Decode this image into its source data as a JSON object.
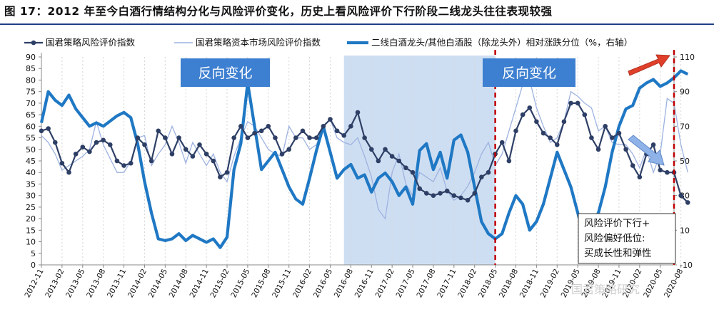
{
  "title": "图 17：2012 年至今白酒行情结构分化与风险评价变化，历史上看风险评价下行阶段二线龙头往往表现较强",
  "annotations": {
    "box1": "反向变化",
    "box2": "反向变化",
    "note": [
      "风险评价下行+",
      "风险偏好低位:",
      "买成长性和弹性"
    ],
    "watermark": "国君策略研究"
  },
  "colors": {
    "series_risk": "#2e3f66",
    "series_market": "#9db2e0",
    "series_relative": "#1f78c4",
    "shade": "#c5d8f0",
    "box": "#3d7fd0",
    "dash": "#c00000"
  },
  "chart_data": {
    "type": "line",
    "y_left": {
      "min": 0,
      "max": 90,
      "ticks": [
        0,
        5,
        10,
        15,
        20,
        25,
        30,
        35,
        40,
        45,
        50,
        55,
        60,
        65,
        70,
        75,
        80,
        85,
        90
      ]
    },
    "y_right": {
      "min": -10,
      "max": 110,
      "ticks": [
        -10,
        10,
        30,
        50,
        70,
        90,
        110
      ],
      "label": "右轴"
    },
    "x_ticks": [
      "2012-11",
      "2013-02",
      "2013-05",
      "2013-08",
      "2013-11",
      "2014-02",
      "2014-05",
      "2014-08",
      "2014-11",
      "2015-02",
      "2015-05",
      "2015-08",
      "2015-11",
      "2016-02",
      "2016-05",
      "2016-08",
      "2016-11",
      "2017-02",
      "2017-05",
      "2017-08",
      "2017-11",
      "2018-02",
      "2018-05",
      "2018-08",
      "2018-11",
      "2019-02",
      "2019-05",
      "2019-08",
      "2019-11",
      "2020-02",
      "2020-05",
      "2020-08"
    ],
    "shaded_range": [
      "2016-07",
      "2018-05"
    ],
    "vlines": [
      "2018-05",
      "2020-07"
    ],
    "series": [
      {
        "name": "国君策略风险评价指数",
        "axis": "left",
        "values": [
          58,
          59,
          53,
          44,
          40,
          48,
          51,
          49,
          53,
          54,
          52,
          45,
          43,
          44,
          55,
          52,
          45,
          58,
          55,
          48,
          55,
          50,
          47,
          52,
          48,
          45,
          38,
          40,
          55,
          60,
          55,
          57,
          58,
          60,
          55,
          48,
          50,
          55,
          58,
          55,
          55,
          60,
          63,
          58,
          56,
          60,
          66,
          55,
          50,
          45,
          50,
          47,
          45,
          42,
          40,
          33,
          31,
          30,
          31,
          32,
          30,
          29,
          28,
          31,
          38,
          40,
          48,
          53,
          45,
          58,
          65,
          68,
          62,
          57,
          55,
          52,
          62,
          70,
          70,
          65,
          55,
          50,
          60,
          55,
          57,
          50,
          43,
          38,
          48,
          52,
          41,
          40,
          40,
          30,
          27
        ]
      },
      {
        "name": "国君策略资本市场风险评价指数",
        "axis": "left",
        "values": [
          56,
          53,
          48,
          41,
          43,
          45,
          47,
          50,
          62,
          52,
          46,
          40,
          40,
          45,
          55,
          56,
          43,
          48,
          52,
          60,
          53,
          44,
          53,
          48,
          43,
          48,
          40,
          36,
          47,
          55,
          62,
          60,
          55,
          50,
          48,
          47,
          60,
          55,
          55,
          50,
          52,
          60,
          63,
          55,
          53,
          52,
          55,
          47,
          38,
          24,
          20,
          40,
          48,
          35,
          30,
          40,
          38,
          36,
          42,
          32,
          28,
          30,
          34,
          40,
          48,
          53,
          43,
          48,
          58,
          68,
          78,
          80,
          68,
          60,
          53,
          55,
          62,
          75,
          73,
          70,
          68,
          58,
          60,
          53,
          52,
          52,
          48,
          42,
          50,
          40,
          48,
          72,
          70,
          52,
          40
        ]
      },
      {
        "name": "二线白酒龙头/其他白酒股（除龙头外）相对涨跌分位（%，右轴）",
        "axis": "right",
        "values": [
          72,
          90,
          85,
          82,
          88,
          80,
          75,
          70,
          72,
          70,
          73,
          76,
          78,
          75,
          60,
          38,
          20,
          5,
          4,
          5,
          8,
          4,
          7,
          5,
          3,
          5,
          0,
          6,
          45,
          60,
          95,
          70,
          45,
          50,
          55,
          45,
          35,
          28,
          25,
          40,
          56,
          70,
          55,
          40,
          45,
          48,
          40,
          42,
          32,
          40,
          43,
          38,
          30,
          35,
          25,
          56,
          60,
          45,
          55,
          40,
          62,
          65,
          55,
          35,
          15,
          8,
          5,
          8,
          20,
          30,
          25,
          10,
          15,
          25,
          40,
          55,
          45,
          35,
          20,
          5,
          15,
          20,
          35,
          55,
          70,
          80,
          82,
          92,
          95,
          97,
          93,
          95,
          98,
          102,
          100
        ]
      }
    ],
    "start": "2012-11",
    "end": "2020-07"
  }
}
